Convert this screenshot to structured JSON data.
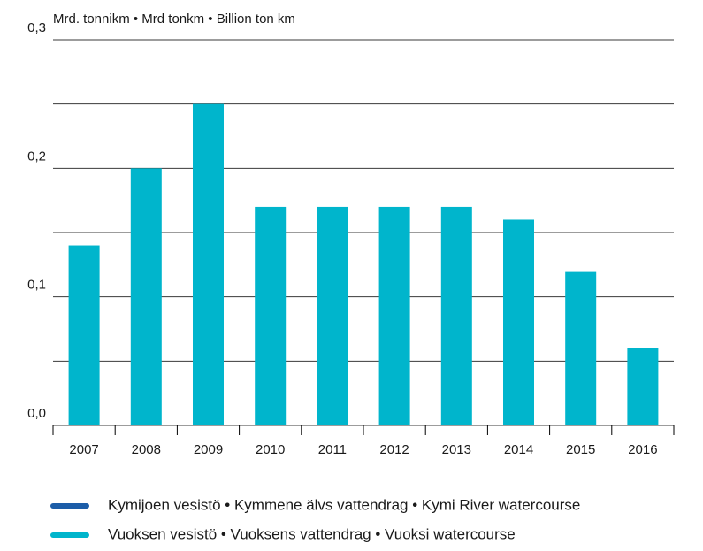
{
  "chart_data": {
    "type": "bar",
    "title": "Mrd. tonnikm  •  Mrd tonkm  •  Billion ton km",
    "categories": [
      "2007",
      "2008",
      "2009",
      "2010",
      "2011",
      "2012",
      "2013",
      "2014",
      "2015",
      "2016"
    ],
    "series": [
      {
        "name": "Kymijoen vesistö • Kymmene älvs vattendrag • Kymi River watercourse",
        "color": "#1c5da8",
        "values": [
          0,
          0,
          0,
          0,
          0,
          0,
          0,
          0,
          0,
          0
        ]
      },
      {
        "name": "Vuoksen vesistö • Vuoksens vattendrag • Vuoksi watercourse",
        "color": "#00b5cc",
        "values": [
          0.14,
          0.2,
          0.25,
          0.17,
          0.17,
          0.17,
          0.17,
          0.16,
          0.12,
          0.06
        ]
      }
    ],
    "ylim": [
      0,
      0.3
    ],
    "yticks": [
      {
        "value": 0,
        "label": "0,0"
      },
      {
        "value": 0.1,
        "label": "0,1"
      },
      {
        "value": 0.2,
        "label": "0,2"
      },
      {
        "value": 0.3,
        "label": "0,3"
      }
    ],
    "minor_yticks": [
      0.05,
      0.15,
      0.25
    ],
    "grid": true
  }
}
